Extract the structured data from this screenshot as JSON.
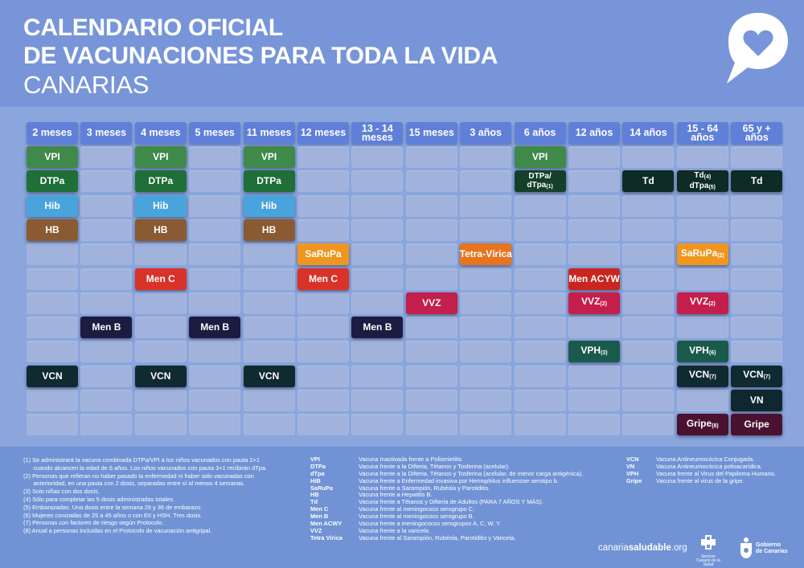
{
  "header": {
    "title_line1": "CALENDARIO OFICIAL",
    "title_line2": "DE VACUNACIONES PARA TODA LA VIDA",
    "region": "CANARIAS"
  },
  "logo": {
    "icon": "heart-speech-bubble-icon"
  },
  "columns": [
    "2 meses",
    "3 meses",
    "4 meses",
    "5 meses",
    "11 meses",
    "12 meses",
    "13 - 14 meses",
    "15 meses",
    "3 años",
    "6 años",
    "12 años",
    "14 años",
    "15 - 64 años",
    "65 y + años"
  ],
  "rows": 12,
  "vaccines": [
    {
      "row": 0,
      "col": 0,
      "label": "VPI",
      "sup": "",
      "color": "#3f8a4a"
    },
    {
      "row": 0,
      "col": 2,
      "label": "VPI",
      "sup": "",
      "color": "#3f8a4a"
    },
    {
      "row": 0,
      "col": 4,
      "label": "VPI",
      "sup": "",
      "color": "#3f8a4a"
    },
    {
      "row": 0,
      "col": 9,
      "label": "VPI",
      "sup": "",
      "color": "#3f8a4a"
    },
    {
      "row": 1,
      "col": 0,
      "label": "DTPa",
      "sup": "",
      "color": "#1f6f38"
    },
    {
      "row": 1,
      "col": 2,
      "label": "DTPa",
      "sup": "",
      "color": "#1f6f38"
    },
    {
      "row": 1,
      "col": 4,
      "label": "DTPa",
      "sup": "",
      "color": "#1f6f38"
    },
    {
      "row": 1,
      "col": 9,
      "label": "DTPa/",
      "label2": "dTpa",
      "sup2": "(1)",
      "color": "#14402a",
      "small": true
    },
    {
      "row": 1,
      "col": 11,
      "label": "Td",
      "sup": "",
      "color": "#0e2c25"
    },
    {
      "row": 1,
      "col": 12,
      "label": "Td",
      "sup": "(4)",
      "label2": "dTpa",
      "sup2": "(5)",
      "color": "#0e2c25",
      "small": true
    },
    {
      "row": 1,
      "col": 13,
      "label": "Td",
      "sup": "",
      "color": "#0e2c25"
    },
    {
      "row": 2,
      "col": 0,
      "label": "Hib",
      "sup": "",
      "color": "#4aa4dc"
    },
    {
      "row": 2,
      "col": 2,
      "label": "Hib",
      "sup": "",
      "color": "#4aa4dc"
    },
    {
      "row": 2,
      "col": 4,
      "label": "Hib",
      "sup": "",
      "color": "#4aa4dc"
    },
    {
      "row": 3,
      "col": 0,
      "label": "HB",
      "sup": "",
      "color": "#8a5a32"
    },
    {
      "row": 3,
      "col": 2,
      "label": "HB",
      "sup": "",
      "color": "#8a5a32"
    },
    {
      "row": 3,
      "col": 4,
      "label": "HB",
      "sup": "",
      "color": "#8a5a32"
    },
    {
      "row": 4,
      "col": 5,
      "label": "SaRuPa",
      "sup": "",
      "color": "#f0961e"
    },
    {
      "row": 4,
      "col": 8,
      "label": "Tetra-Vírica",
      "sup": "",
      "color": "#e8741e"
    },
    {
      "row": 4,
      "col": 12,
      "label": "SaRuPa",
      "sup": "(2)",
      "color": "#f0961e"
    },
    {
      "row": 5,
      "col": 2,
      "label": "Men C",
      "sup": "",
      "color": "#d93228"
    },
    {
      "row": 5,
      "col": 5,
      "label": "Men C",
      "sup": "",
      "color": "#d93228"
    },
    {
      "row": 5,
      "col": 10,
      "label": "Men ACYW",
      "sup": "",
      "color": "#c8261e"
    },
    {
      "row": 6,
      "col": 7,
      "label": "VVZ",
      "sup": "",
      "color": "#c41e4c"
    },
    {
      "row": 6,
      "col": 10,
      "label": "VVZ",
      "sup": "(2)",
      "color": "#c41e4c"
    },
    {
      "row": 6,
      "col": 12,
      "label": "VVZ",
      "sup": "(2)",
      "color": "#c41e4c"
    },
    {
      "row": 7,
      "col": 1,
      "label": "Men B",
      "sup": "",
      "color": "#1a1c40"
    },
    {
      "row": 7,
      "col": 3,
      "label": "Men B",
      "sup": "",
      "color": "#1a1c40"
    },
    {
      "row": 7,
      "col": 6,
      "label": "Men B",
      "sup": "",
      "color": "#1a1c40"
    },
    {
      "row": 8,
      "col": 10,
      "label": "VPH",
      "sup": "(3)",
      "color": "#1a5a4c"
    },
    {
      "row": 8,
      "col": 12,
      "label": "VPH",
      "sup": "(6)",
      "color": "#1a5a4c"
    },
    {
      "row": 9,
      "col": 0,
      "label": "VCN",
      "sup": "",
      "color": "#102a32"
    },
    {
      "row": 9,
      "col": 2,
      "label": "VCN",
      "sup": "",
      "color": "#102a32"
    },
    {
      "row": 9,
      "col": 4,
      "label": "VCN",
      "sup": "",
      "color": "#102a32"
    },
    {
      "row": 9,
      "col": 12,
      "label": "VCN",
      "sup": "(7)",
      "color": "#102a32"
    },
    {
      "row": 9,
      "col": 13,
      "label": "VCN",
      "sup": "(7)",
      "color": "#102a32"
    },
    {
      "row": 10,
      "col": 13,
      "label": "VN",
      "sup": "",
      "color": "#0f2830"
    },
    {
      "row": 11,
      "col": 12,
      "label": "Gripe",
      "sup": "(8)",
      "color": "#4a1230"
    },
    {
      "row": 11,
      "col": 13,
      "label": "Gripe",
      "sup": "",
      "color": "#4a1230"
    }
  ],
  "notes": [
    "(1) Se administrará la vacuna combinada DTPa/VPI a los niños vacunados con pauta 2+1",
    "      cuando alcancen la edad de 6 años. Los niños vacunados con pauta 3+1 recibirán dTpa.",
    "(2) Personas que refieran no haber pasado la enfermedad ni haber sido vacunadas con",
    "      anterioridad, en una pauta con 2 dosis, separadas entre sí al menos 4 semanas.",
    "(3) Solo niñas con dos dosis.",
    "(4) Sólo para completar las 5 dosis administradas totales.",
    "(5) Embarazadas. Una dosis entre la semana 28 y 36 de embarazo.",
    "(6) Mujeres conizadas de 25 a 45 años o con EII y HSH. Tres dosis.",
    "(7) Personas con factores de riesgo según Protocolo.",
    "(8) Anual a personas incluidas en el Protocolo de vacunación antigripal."
  ],
  "abbreviations_left": [
    {
      "abbr": "VPI",
      "desc": "Vacuna Inactivada frente a Poliomielitis"
    },
    {
      "abbr": "DTPa",
      "desc": "Vacuna frente a la Difteria, Tétanos y Tosferina (acelular)."
    },
    {
      "abbr": "dTpa",
      "desc": "Vacuna frente a la Difteria, Tétanos y Tosferina (acelular, de menor carga antigénica)."
    },
    {
      "abbr": "HiB",
      "desc": "Vacuna frente a Enfermedad invasiva por Hemophilus influenzae serotipo b."
    },
    {
      "abbr": "SaRuPa",
      "desc": "Vacuna frente a Sarampión, Rubéola y Parotiditis."
    },
    {
      "abbr": "HB",
      "desc": "Vacuna frente a Hepatitis B."
    },
    {
      "abbr": "Td",
      "desc": "Vacuna frente a Tétanos y Difteria de Adultos (PARA 7 AÑOS Y MÁS)."
    },
    {
      "abbr": "Men C",
      "desc": "Vacuna frente al meningococo serogrupo C."
    },
    {
      "abbr": "Men B",
      "desc": "Vacuna frente al meningococo serogrupo B."
    },
    {
      "abbr": "Men ACWY",
      "desc": "Vacuna frente a meningococos serogrupos A, C, W, Y."
    },
    {
      "abbr": "VVZ",
      "desc": "Vacuna frente a la varicela."
    },
    {
      "abbr": "Tetra Vírica",
      "desc": "Vacuna frente al Sarampión, Rubéola, Parotiditis y Varicela."
    }
  ],
  "abbreviations_right": [
    {
      "abbr": "VCN",
      "desc": "Vacuna Antineumocócica Conjugada."
    },
    {
      "abbr": "VN",
      "desc": "Vacuna Antineumocócica polisacarídica."
    },
    {
      "abbr": "VPH",
      "desc": "Vacuna frente al Virus del Papiloma Humano."
    },
    {
      "abbr": "Gripe",
      "desc": "Vacuna frente al virus de la gripe."
    }
  ],
  "brand": {
    "part1": "canaria",
    "part2": "saludable",
    "part3": ".org"
  },
  "sns": {
    "line1": "Servicio",
    "line2": "Canario de la Salud"
  },
  "gobierno": {
    "line1": "Gobierno",
    "line2": "de Canarias"
  }
}
